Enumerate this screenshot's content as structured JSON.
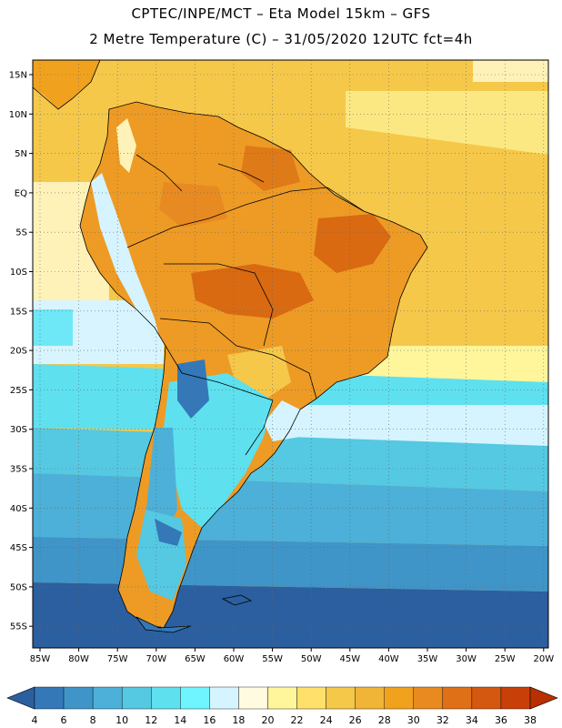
{
  "header": {
    "line1": "CPTEC/INPE/MCT –  Eta Model 15km – GFS",
    "line2": "2 Metre Temperature (C) – 31/05/2020 12UTC fct=4h"
  },
  "map": {
    "lat_labels": [
      "15N",
      "10N",
      "5N",
      "EQ",
      "5S",
      "10S",
      "15S",
      "20S",
      "25S",
      "30S",
      "35S",
      "40S",
      "45S",
      "50S",
      "55S"
    ],
    "lon_labels": [
      "85W",
      "80W",
      "75W",
      "70W",
      "65W",
      "60W",
      "55W",
      "50W",
      "45W",
      "40W",
      "35W",
      "30W",
      "25W",
      "20W"
    ]
  },
  "colorbar": {
    "ticks": [
      "4",
      "6",
      "8",
      "10",
      "12",
      "14",
      "16",
      "18",
      "20",
      "22",
      "24",
      "26",
      "28",
      "30",
      "32",
      "34",
      "36",
      "38"
    ],
    "colors": [
      "#2b5fa0",
      "#3478b8",
      "#3f95c8",
      "#4cb0d8",
      "#55c8e2",
      "#5ee0ef",
      "#6ef5ff",
      "#d5f4ff",
      "#fffbe0",
      "#fff59a",
      "#ffe06a",
      "#f5c84a",
      "#f0b436",
      "#f0a21e",
      "#e98a20",
      "#e07018",
      "#d55810",
      "#c84008",
      "#b83000"
    ]
  }
}
